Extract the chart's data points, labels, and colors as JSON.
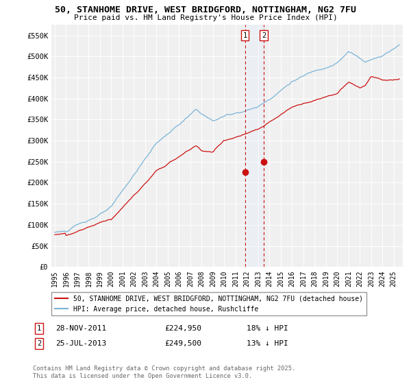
{
  "title": "50, STANHOME DRIVE, WEST BRIDGFORD, NOTTINGHAM, NG2 7FU",
  "subtitle": "Price paid vs. HM Land Registry's House Price Index (HPI)",
  "hpi_color": "#7ab4d8",
  "price_color": "#cc1111",
  "ylim": [
    0,
    575000
  ],
  "yticks": [
    0,
    50000,
    100000,
    150000,
    200000,
    250000,
    300000,
    350000,
    400000,
    450000,
    500000,
    550000
  ],
  "ytick_labels": [
    "£0",
    "£50K",
    "£100K",
    "£150K",
    "£200K",
    "£250K",
    "£300K",
    "£350K",
    "£400K",
    "£450K",
    "£500K",
    "£550K"
  ],
  "legend_label_red": "50, STANHOME DRIVE, WEST BRIDGFORD, NOTTINGHAM, NG2 7FU (detached house)",
  "legend_label_blue": "HPI: Average price, detached house, Rushcliffe",
  "transaction1_date": "28-NOV-2011",
  "transaction1_price": "£224,950",
  "transaction1_hpi": "18% ↓ HPI",
  "transaction2_date": "25-JUL-2013",
  "transaction2_price": "£249,500",
  "transaction2_hpi": "13% ↓ HPI",
  "footnote": "Contains HM Land Registry data © Crown copyright and database right 2025.\nThis data is licensed under the Open Government Licence v3.0.",
  "background_color": "#ffffff",
  "plot_bg_color": "#f0f0f0",
  "grid_color": "#ffffff",
  "shade_color": "#ddeeff"
}
